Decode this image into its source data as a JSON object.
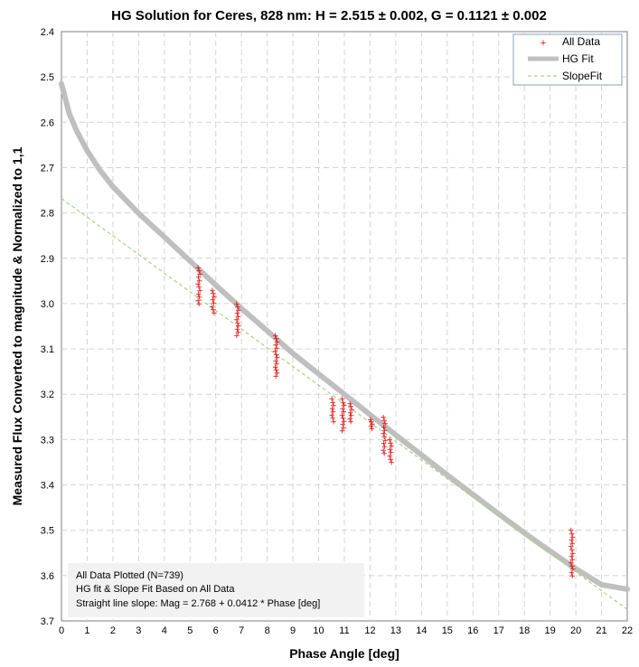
{
  "chart_data": {
    "type": "scatter",
    "title": "HG Solution for Ceres, 828 nm:  H = 2.515 ± 0.002, G = 0.1121 ± 0.002",
    "xlabel": "Phase Angle [deg]",
    "ylabel": "Measured Flux Converted to magnitude & Normalized to 1,1",
    "xlim": [
      0,
      22
    ],
    "ylim": [
      2.4,
      3.7
    ],
    "y_inverted": true,
    "grid": true,
    "x_ticks": [
      "0",
      "1",
      "2",
      "3",
      "4",
      "5",
      "6",
      "7",
      "8",
      "9",
      "10",
      "11",
      "12",
      "13",
      "14",
      "15",
      "16",
      "17",
      "18",
      "19",
      "20",
      "21",
      "22"
    ],
    "y_ticks": [
      "2.4",
      "2.5",
      "2.6",
      "2.7",
      "2.8",
      "2.9",
      "3.0",
      "3.1",
      "3.2",
      "3.3",
      "3.4",
      "3.5",
      "3.6",
      "3.7"
    ],
    "legend": {
      "position": "top-right",
      "entries": [
        "All Data",
        "HG Fit",
        "SlopeFit"
      ]
    },
    "colors": {
      "all_data": "#e00000",
      "hg_fit": "#bfbfbf",
      "slope_fit": "#a9d18e"
    },
    "series": [
      {
        "name": "All Data",
        "kind": "points",
        "clusters": [
          {
            "x": 5.35,
            "y_min": 2.92,
            "y_max": 3.0
          },
          {
            "x": 5.9,
            "y_min": 2.97,
            "y_max": 3.02
          },
          {
            "x": 6.85,
            "y_min": 3.0,
            "y_max": 3.07
          },
          {
            "x": 8.35,
            "y_min": 3.07,
            "y_max": 3.16
          },
          {
            "x": 10.55,
            "y_min": 3.21,
            "y_max": 3.26
          },
          {
            "x": 10.95,
            "y_min": 3.21,
            "y_max": 3.28
          },
          {
            "x": 11.25,
            "y_min": 3.22,
            "y_max": 3.26
          },
          {
            "x": 12.05,
            "y_min": 3.255,
            "y_max": 3.275
          },
          {
            "x": 12.55,
            "y_min": 3.25,
            "y_max": 3.33
          },
          {
            "x": 12.8,
            "y_min": 3.3,
            "y_max": 3.35
          },
          {
            "x": 19.85,
            "y_min": 3.5,
            "y_max": 3.6
          }
        ]
      },
      {
        "name": "HG Fit",
        "kind": "line",
        "x": [
          0,
          0.3,
          0.6,
          1,
          1.5,
          2,
          3,
          4,
          5,
          6,
          7,
          8,
          9,
          10,
          11,
          12,
          13,
          14,
          15,
          16,
          17,
          18,
          19,
          20,
          21,
          22
        ],
        "y": [
          2.515,
          2.58,
          2.62,
          2.663,
          2.706,
          2.742,
          2.801,
          2.853,
          2.906,
          2.959,
          3.011,
          3.06,
          3.11,
          3.155,
          3.2,
          3.245,
          3.29,
          3.334,
          3.378,
          3.421,
          3.464,
          3.506,
          3.546,
          3.585,
          3.62,
          3.63
        ]
      },
      {
        "name": "SlopeFit",
        "kind": "line",
        "x": [
          0,
          22
        ],
        "y": [
          2.768,
          3.6744
        ]
      }
    ],
    "annotations": [
      "All Data Plotted (N=739)",
      "HG fit & Slope Fit Based on All Data",
      "Straight line slope:  Mag = 2.768 + 0.0412 * Phase [deg]"
    ]
  }
}
